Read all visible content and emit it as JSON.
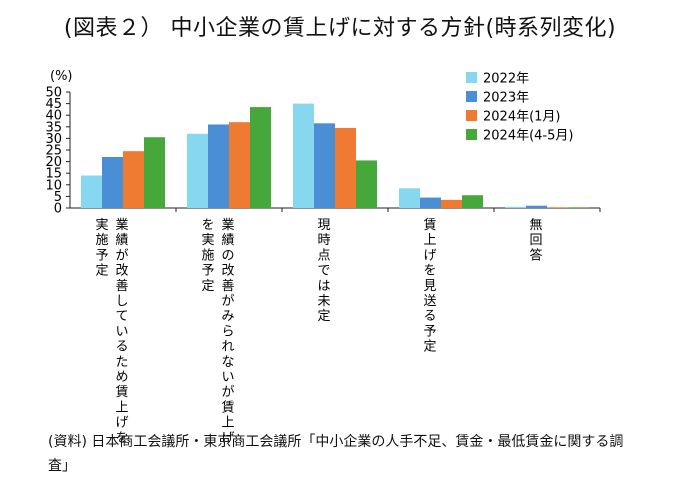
{
  "title": "(図表２） 中小企業の賃上げに対する方針(時系列変化)",
  "source": "(資料) 日本商工会議所・東京商工会議所「中小企業の人手不足、賃金・最低賃金に関する調査」",
  "chart_data": {
    "type": "bar",
    "title": "(図表２） 中小企業の賃上げに対する方針(時系列変化)",
    "ylabel": "(%)",
    "xlabel": "",
    "ylim": [
      0,
      50
    ],
    "yticks": [
      "0",
      "5",
      "10",
      "15",
      "20",
      "25",
      "30",
      "35",
      "40",
      "45",
      "50"
    ],
    "grid": false,
    "legend_position": "top-right",
    "categories": [
      [
        "業績が改善しているため賃上げを",
        "実施予定"
      ],
      [
        "業績の改善がみられないが賃上げ",
        "を実施予定"
      ],
      [
        "現時点では未定"
      ],
      [
        "賃上げを見送る予定"
      ],
      [
        "無回答"
      ]
    ],
    "series": [
      {
        "name": "2022年",
        "color": "#87D7F0",
        "values": [
          14.0,
          32.0,
          45.0,
          8.5,
          0.5
        ]
      },
      {
        "name": "2023年",
        "color": "#4A8FD6",
        "values": [
          22.0,
          36.0,
          36.5,
          4.5,
          1.0
        ]
      },
      {
        "name": "2024年(1月)",
        "color": "#EF7A32",
        "values": [
          24.5,
          37.0,
          34.5,
          3.5,
          0.3
        ]
      },
      {
        "name": "2024年(4-5月)",
        "color": "#46A83A",
        "values": [
          30.5,
          43.5,
          20.5,
          5.5,
          0.3
        ]
      }
    ]
  }
}
